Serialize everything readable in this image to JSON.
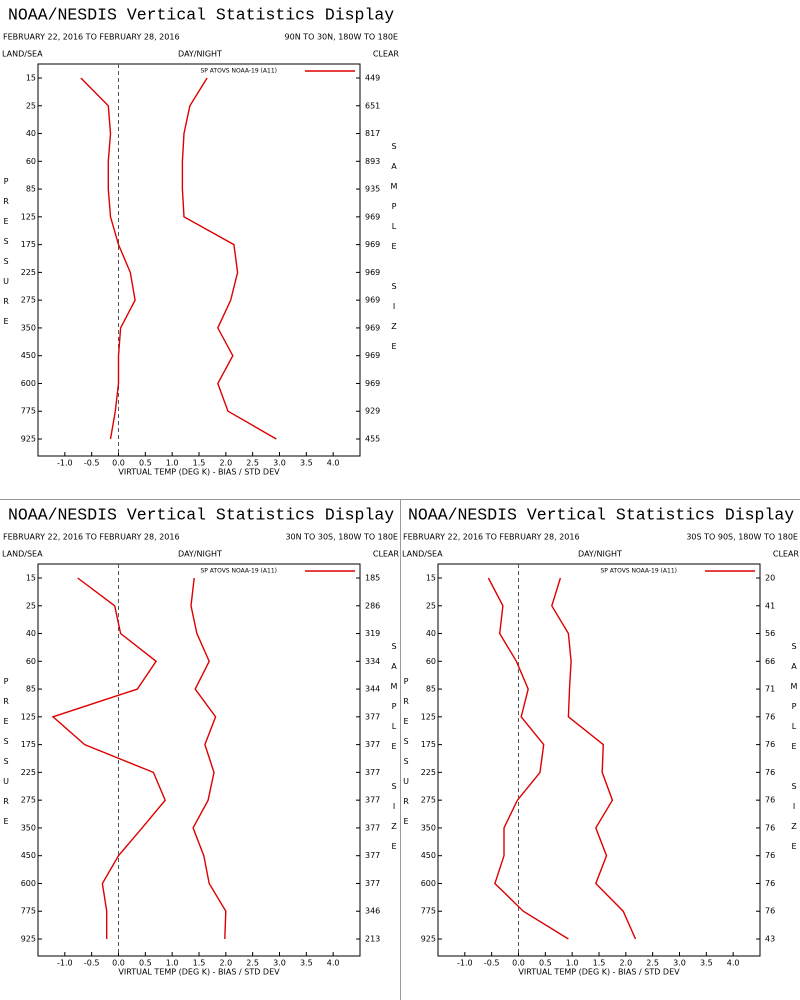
{
  "chart_data": [
    {
      "type": "line",
      "title": "NOAA/NESDIS Vertical Statistics Display",
      "subtitle": "FEBRUARY 22, 2016 TO FEBRUARY 28, 2016",
      "region": "90N TO 30N, 180W TO 180E",
      "land_sea": "LAND/SEA",
      "day_night": "DAY/NIGHT",
      "clear": "CLEAR",
      "y_label": "PRESSURE",
      "y2_label": "SAMPLE SIZE",
      "x_label": "VIRTUAL TEMP (DEG K) - BIAS / STD DEV",
      "categories": [
        "15",
        "25",
        "40",
        "60",
        "85",
        "125",
        "175",
        "225",
        "275",
        "350",
        "450",
        "600",
        "775",
        "925"
      ],
      "series": [
        {
          "name": "SP ATOVS NOAA-19 (A11)",
          "color": "#dd0000",
          "values": [
            -0.7,
            -0.19,
            -0.15,
            -0.19,
            -0.19,
            -0.15,
            0.0,
            0.22,
            0.31,
            0.04,
            0.0,
            0.0,
            -0.06,
            -0.15
          ]
        },
        {
          "color": "#dd0000",
          "values": [
            1.65,
            1.33,
            1.22,
            1.19,
            1.19,
            1.22,
            2.15,
            2.22,
            2.09,
            1.85,
            2.13,
            1.85,
            2.04,
            2.94
          ]
        }
      ],
      "sample_size": [
        449,
        651,
        817,
        893,
        935,
        969,
        969,
        969,
        969,
        969,
        969,
        969,
        929,
        455
      ],
      "xlim": [
        -1.5,
        4.5
      ],
      "xticks": [
        {
          "value": -1,
          "label": "-1.0"
        },
        -0.5,
        {
          "value": 0,
          "label": "0.0"
        },
        0.5,
        {
          "value": 1,
          "label": "1.0"
        },
        1.5,
        {
          "value": 2,
          "label": "2.0"
        },
        2.5,
        {
          "value": 3,
          "label": "3.0"
        },
        3.5,
        {
          "value": 4,
          "label": "4.0"
        }
      ]
    },
    {
      "type": "line",
      "title": "NOAA/NESDIS Vertical Statistics Display",
      "subtitle": "FEBRUARY 22, 2016 TO FEBRUARY 28, 2016",
      "region": "30N TO 30S, 180W TO 180E",
      "land_sea": "LAND/SEA",
      "day_night": "DAY/NIGHT",
      "clear": "CLEAR",
      "y_label": "PRESSURE",
      "y2_label": "SAMPLE SIZE",
      "x_label": "VIRTUAL TEMP (DEG K) - BIAS / STD DEV",
      "categories": [
        "15",
        "25",
        "40",
        "60",
        "85",
        "125",
        "175",
        "225",
        "275",
        "350",
        "450",
        "600",
        "775",
        "925"
      ],
      "series": [
        {
          "name": "SP ATOVS NOAA-19 (A11)",
          "color": "#dd0000",
          "values": [
            -0.76,
            -0.07,
            0.04,
            0.7,
            0.35,
            -1.22,
            -0.63,
            0.65,
            0.87,
            0.44,
            0.0,
            -0.3,
            -0.22,
            -0.22
          ]
        },
        {
          "color": "#dd0000",
          "values": [
            1.41,
            1.35,
            1.46,
            1.69,
            1.43,
            1.81,
            1.61,
            1.78,
            1.67,
            1.39,
            1.59,
            1.69,
            2.0,
            1.98
          ]
        }
      ],
      "sample_size": [
        185,
        286,
        319,
        334,
        344,
        377,
        377,
        377,
        377,
        377,
        377,
        377,
        346,
        213
      ],
      "xlim": [
        -1.5,
        4.5
      ],
      "xticks": [
        {
          "value": -1,
          "label": "-1.0"
        },
        -0.5,
        {
          "value": 0,
          "label": "0.0"
        },
        0.5,
        {
          "value": 1,
          "label": "1.0"
        },
        1.5,
        {
          "value": 2,
          "label": "2.0"
        },
        2.5,
        {
          "value": 3,
          "label": "3.0"
        },
        3.5,
        {
          "value": 4,
          "label": "4.0"
        }
      ]
    },
    {
      "type": "line",
      "title": "NOAA/NESDIS Vertical Statistics Display",
      "subtitle": "FEBRUARY 22, 2016 TO FEBRUARY 28, 2016",
      "region": "30S TO 90S, 180W TO 180E",
      "land_sea": "LAND/SEA",
      "day_night": "DAY/NIGHT",
      "clear": "CLEAR",
      "y_label": "PRESSURE",
      "y2_label": "SAMPLE SIZE",
      "x_label": "VIRTUAL TEMP (DEG K) - BIAS / STD DEV",
      "categories": [
        "15",
        "25",
        "40",
        "60",
        "85",
        "125",
        "175",
        "225",
        "275",
        "350",
        "450",
        "600",
        "775",
        "925"
      ],
      "series": [
        {
          "name": "SP ATOVS NOAA-19 (A11)",
          "color": "#dd0000",
          "values": [
            -0.56,
            -0.29,
            -0.35,
            -0.04,
            0.18,
            0.05,
            0.47,
            0.4,
            -0.02,
            -0.27,
            -0.27,
            -0.44,
            0.09,
            0.93
          ]
        },
        {
          "color": "#dd0000",
          "values": [
            0.78,
            0.62,
            0.93,
            0.98,
            0.95,
            0.93,
            1.58,
            1.56,
            1.75,
            1.44,
            1.64,
            1.44,
            1.95,
            2.18
          ]
        }
      ],
      "sample_size": [
        20,
        41,
        56,
        66,
        71,
        76,
        76,
        76,
        76,
        76,
        76,
        76,
        76,
        43
      ],
      "xlim": [
        -1.5,
        4.5
      ],
      "xticks": [
        {
          "value": -1,
          "label": "-1.0"
        },
        -0.5,
        {
          "value": 0,
          "label": "0.0"
        },
        0.5,
        {
          "value": 1,
          "label": "1.0"
        },
        1.5,
        {
          "value": 2,
          "label": "2.0"
        },
        2.5,
        {
          "value": 3,
          "label": "3.0"
        },
        3.5,
        {
          "value": 4,
          "label": "4.0"
        }
      ]
    }
  ]
}
